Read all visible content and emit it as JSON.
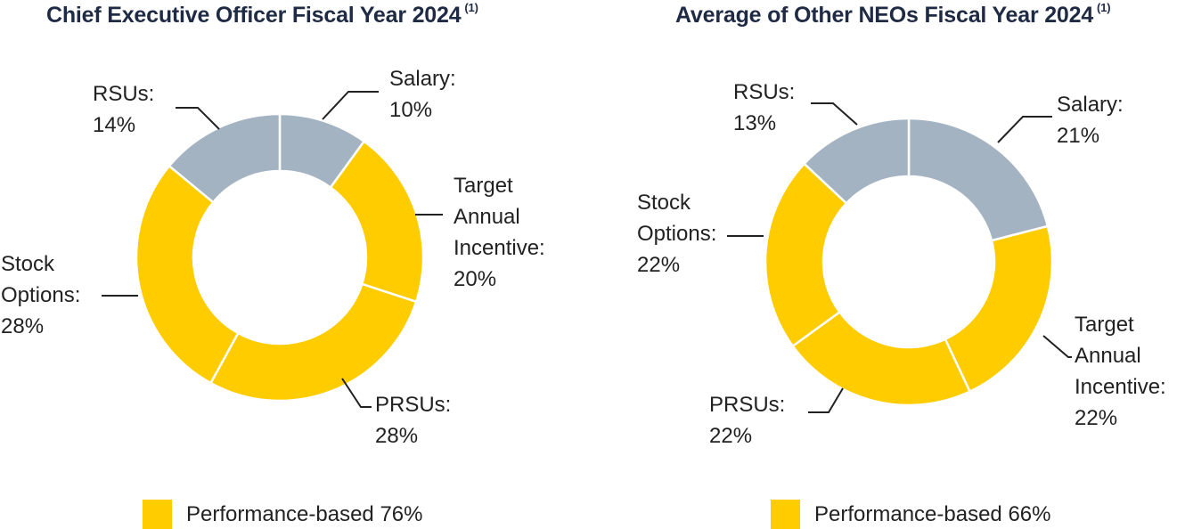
{
  "colors": {
    "performance": "#ffcc00",
    "fixed": "#a3b3c2",
    "title": "#1f2a44",
    "leader": "#222222"
  },
  "chart_data": [
    {
      "type": "pie",
      "subtype": "donut",
      "title": "Chief Executive Officer Fiscal Year 2024",
      "footnote": "(1)",
      "slices": [
        {
          "name": "Salary",
          "value": 10,
          "value_label": "10%",
          "lines": [
            "Salary:"
          ],
          "performance_based": false
        },
        {
          "name": "Target Annual Incentive",
          "value": 20,
          "value_label": "20%",
          "lines": [
            "Target",
            "Annual",
            "Incentive:"
          ],
          "performance_based": true
        },
        {
          "name": "PRSUs",
          "value": 28,
          "value_label": "28%",
          "lines": [
            "PRSUs:"
          ],
          "performance_based": true
        },
        {
          "name": "Stock Options",
          "value": 28,
          "value_label": "28%",
          "lines": [
            "Stock",
            "Options:"
          ],
          "performance_based": true
        },
        {
          "name": "RSUs",
          "value": 14,
          "value_label": "14%",
          "lines": [
            "RSUs:"
          ],
          "performance_based": false
        }
      ],
      "legend": {
        "label": "Performance-based 76%",
        "value": 76
      }
    },
    {
      "type": "pie",
      "subtype": "donut",
      "title": "Average of Other NEOs Fiscal Year 2024",
      "footnote": "(1)",
      "slices": [
        {
          "name": "Salary",
          "value": 21,
          "value_label": "21%",
          "lines": [
            "Salary:"
          ],
          "performance_based": false
        },
        {
          "name": "Target Annual Incentive",
          "value": 22,
          "value_label": "22%",
          "lines": [
            "Target",
            "Annual",
            "Incentive:"
          ],
          "performance_based": true
        },
        {
          "name": "PRSUs",
          "value": 22,
          "value_label": "22%",
          "lines": [
            "PRSUs:"
          ],
          "performance_based": true
        },
        {
          "name": "Stock Options",
          "value": 22,
          "value_label": "22%",
          "lines": [
            "Stock",
            "Options:"
          ],
          "performance_based": true
        },
        {
          "name": "RSUs",
          "value": 13,
          "value_label": "13%",
          "lines": [
            "RSUs:"
          ],
          "performance_based": false
        }
      ],
      "legend": {
        "label": "Performance-based 66%",
        "value": 66
      }
    }
  ]
}
